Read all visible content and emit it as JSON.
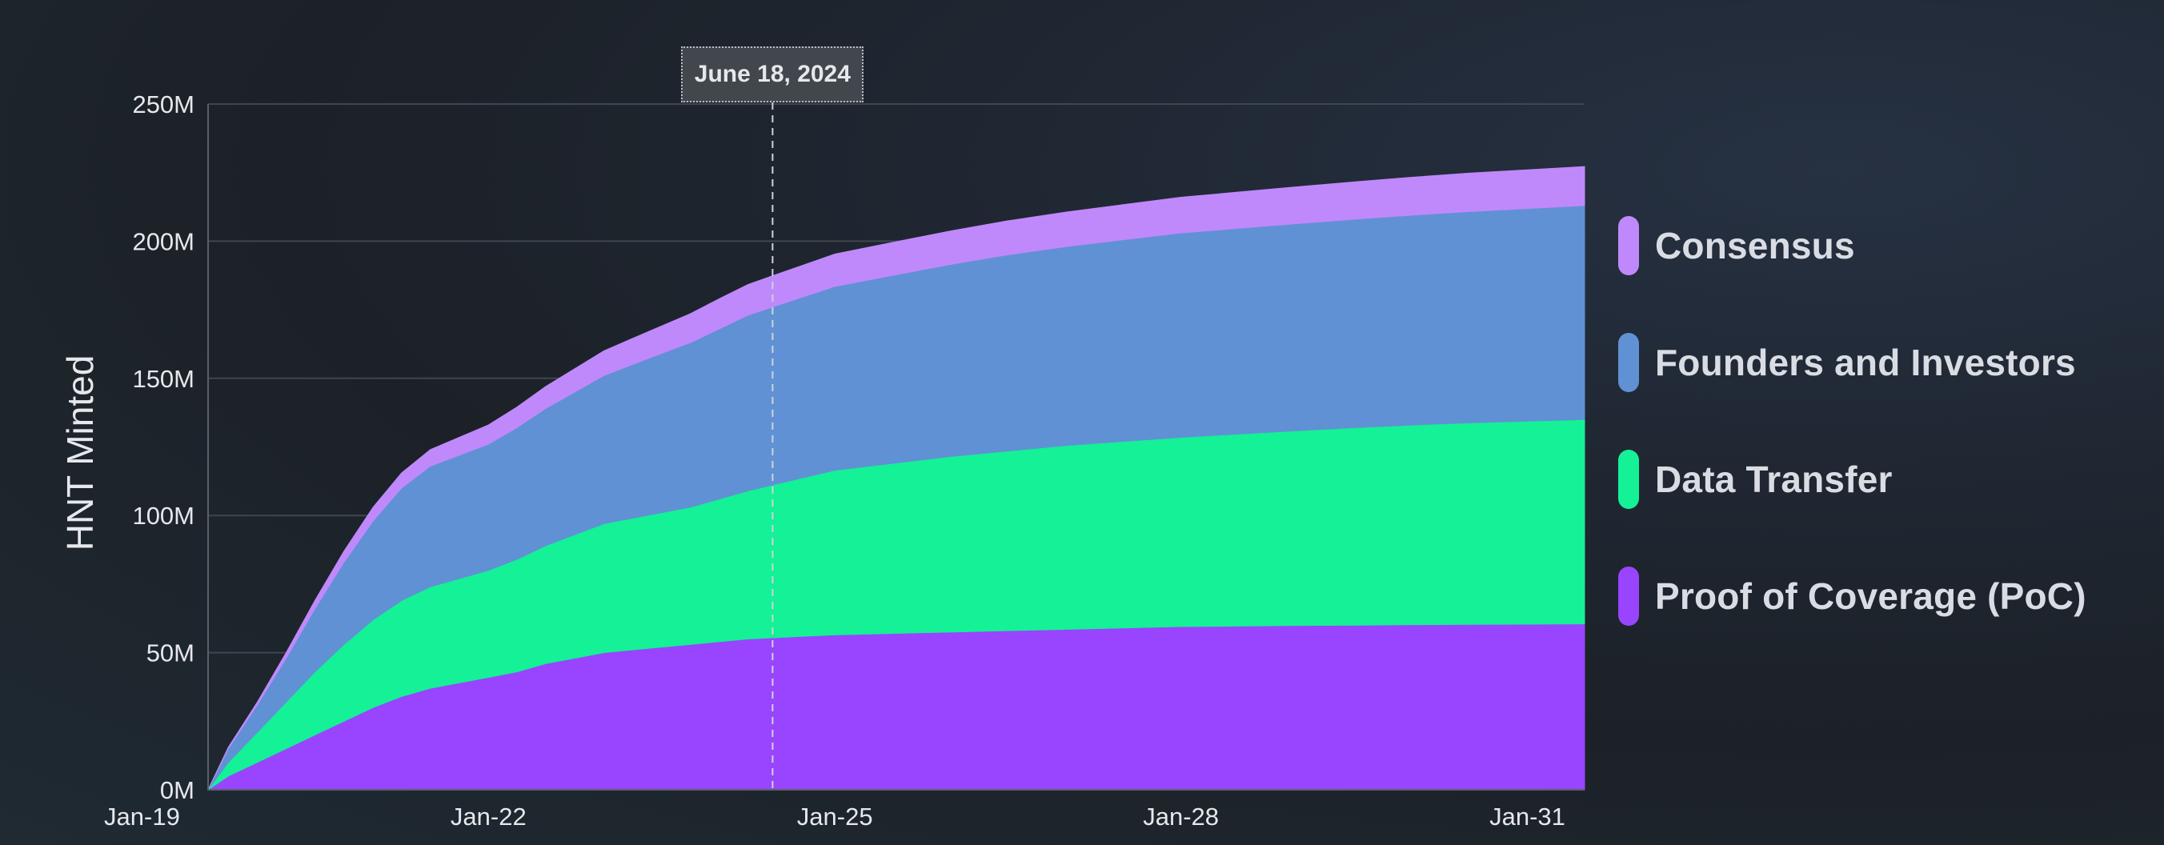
{
  "chart_data": {
    "type": "area",
    "stacked": true,
    "title": "",
    "xlabel": "",
    "ylabel": "HNT Minted",
    "x": [
      "2019-07-29",
      "2019-10-01",
      "2020-01-01",
      "2020-04-01",
      "2020-07-01",
      "2020-10-01",
      "2021-01-01",
      "2021-04-01",
      "2021-07-01",
      "2021-10-01",
      "2022-01-01",
      "2022-04-01",
      "2022-07-01",
      "2022-10-01",
      "2023-01-01",
      "2023-04-01",
      "2023-07-01",
      "2023-10-01",
      "2024-01-01",
      "2024-04-01",
      "2024-07-01",
      "2024-10-01",
      "2025-01-01",
      "2025-07-01",
      "2026-01-01",
      "2026-07-01",
      "2027-01-01",
      "2027-07-01",
      "2028-01-01",
      "2028-07-01",
      "2029-01-01",
      "2029-07-01",
      "2030-01-01",
      "2030-07-01",
      "2031-01-01",
      "2031-07-01"
    ],
    "x_ticks": [
      "Jan-19",
      "Jan-22",
      "Jan-25",
      "Jan-28",
      "Jan-31"
    ],
    "ylim": [
      0,
      250
    ],
    "y_ticks": [
      "0M",
      "50M",
      "100M",
      "150M",
      "200M",
      "250M"
    ],
    "y_unit": "M",
    "grid": true,
    "legend_position": "right",
    "series": [
      {
        "name": "Proof of Coverage (PoC)",
        "color": "#9944ff",
        "values": [
          0,
          5,
          10,
          15,
          20,
          25,
          30,
          34,
          37,
          39,
          41,
          43,
          46,
          48,
          50,
          51,
          52,
          53,
          54,
          55,
          55.5,
          56,
          56.5,
          57,
          57.5,
          58,
          58.5,
          59,
          59.5,
          59.7,
          59.9,
          60,
          60.2,
          60.3,
          60.4,
          60.5
        ]
      },
      {
        "name": "Data Transfer",
        "color": "#14f196",
        "values": [
          0,
          5,
          11,
          17,
          23,
          28,
          32,
          35,
          37,
          38,
          39,
          41,
          43,
          45,
          47,
          48,
          49,
          50,
          52,
          54,
          56,
          58,
          60,
          62,
          64,
          65.5,
          67,
          68,
          69,
          70,
          71,
          72,
          72.8,
          73.5,
          74,
          74.5
        ]
      },
      {
        "name": "Founders and Investors",
        "color": "#6091d4",
        "values": [
          0,
          5,
          10,
          16,
          23,
          30,
          36,
          41,
          44,
          45,
          46,
          48,
          50,
          52,
          54,
          56,
          58,
          60,
          62,
          64,
          65,
          66,
          67,
          68.5,
          70,
          71.5,
          72.5,
          73.5,
          74.5,
          75,
          75.5,
          76,
          76.5,
          77,
          77.5,
          78
        ]
      },
      {
        "name": "Consensus",
        "color": "#bf89fb",
        "values": [
          0,
          0.5,
          1,
          2,
          3,
          4,
          5,
          5.5,
          6,
          6.5,
          7,
          7.5,
          8,
          8.5,
          9,
          9.5,
          10,
          10.5,
          11,
          11.2,
          11.4,
          11.6,
          11.8,
          12,
          12.2,
          12.4,
          12.6,
          12.8,
          13,
          13.2,
          13.4,
          13.6,
          13.8,
          14,
          14.1,
          14.2
        ]
      }
    ],
    "marker": {
      "date": "2024-06-18",
      "label": "June 18, 2024"
    }
  },
  "colors": {
    "grid": "#3f464f",
    "tick_text": "#e6e8ec",
    "marker_line": "#cfd3d9"
  }
}
